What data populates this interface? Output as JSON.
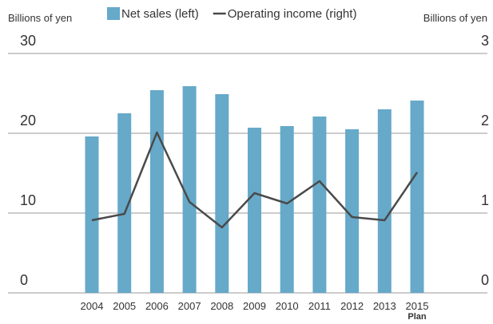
{
  "chart_data": {
    "type": "bar_line",
    "ylabel": "Billions of yen",
    "y2label": "Billions of yen",
    "categories": [
      "2004",
      "2005",
      "2006",
      "2007",
      "2008",
      "2009",
      "2010",
      "2011",
      "2012",
      "2013",
      "2015"
    ],
    "category_note": "Plan",
    "series": [
      {
        "name": "Net sales (left)",
        "color": "#66a9c9",
        "type": "bar",
        "values": [
          19.6,
          22.5,
          25.4,
          25.9,
          24.9,
          20.7,
          20.9,
          22.1,
          20.5,
          23.0,
          24.1
        ]
      },
      {
        "name": "Operating income (right)",
        "color": "#4a4a4a",
        "type": "line",
        "axis": "y2",
        "values": [
          0.91,
          0.99,
          2.01,
          1.14,
          0.82,
          1.25,
          1.12,
          1.4,
          0.95,
          0.91,
          1.51
        ]
      }
    ],
    "ylim": [
      0,
      30
    ],
    "yticks": [
      0,
      10,
      20,
      30
    ],
    "y2lim": [
      0,
      3
    ],
    "y2ticks": [
      0,
      1,
      2,
      3
    ],
    "grid": true
  }
}
